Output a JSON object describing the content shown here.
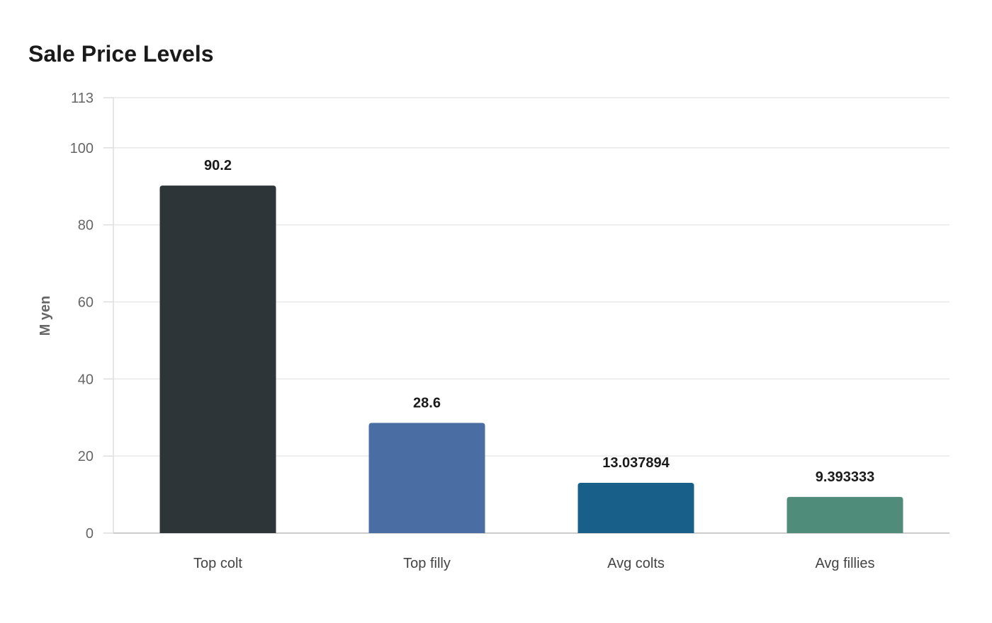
{
  "chart_data": {
    "type": "bar",
    "title": "Sale Price Levels",
    "xlabel": "",
    "ylabel": "M yen",
    "ylim": [
      0,
      113
    ],
    "yticks": [
      0,
      20,
      40,
      60,
      80,
      100,
      113
    ],
    "grid": true,
    "categories": [
      "Top colt",
      "Top filly",
      "Avg colts",
      "Avg fillies"
    ],
    "values": [
      90.2,
      28.6,
      13.037894,
      9.393333
    ],
    "value_labels": [
      "90.2",
      "28.6",
      "13.037894",
      "9.393333"
    ],
    "colors": [
      "#2e3538",
      "#4a6ea3",
      "#186089",
      "#4f8c7a"
    ]
  }
}
